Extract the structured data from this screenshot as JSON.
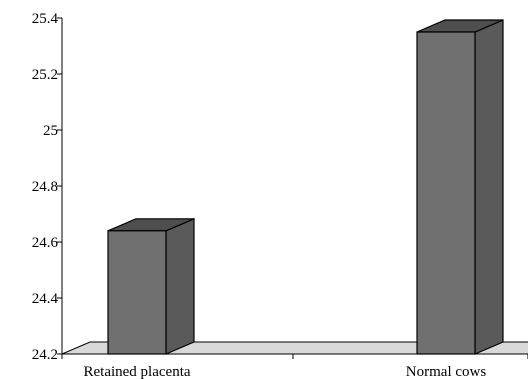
{
  "chart_data": {
    "type": "bar",
    "style": "3d",
    "categories": [
      "Retained placenta",
      "Normal cows"
    ],
    "values": [
      24.64,
      25.35
    ],
    "ylim": [
      24.2,
      25.4
    ],
    "yticks": [
      24.2,
      24.4,
      24.6,
      24.8,
      25.0,
      25.2,
      25.4
    ],
    "ytick_labels": [
      "24.2",
      "24.4",
      "24.6",
      "24.8",
      "25",
      "25.2",
      "25.4"
    ],
    "title": "",
    "xlabel": "",
    "ylabel": "",
    "grid": false,
    "colors": {
      "bar_front": "#707070",
      "bar_side": "#5a5a5a",
      "bar_top": "#4e4e4e",
      "floor": "#d9d9d9",
      "line": "#000000"
    }
  }
}
